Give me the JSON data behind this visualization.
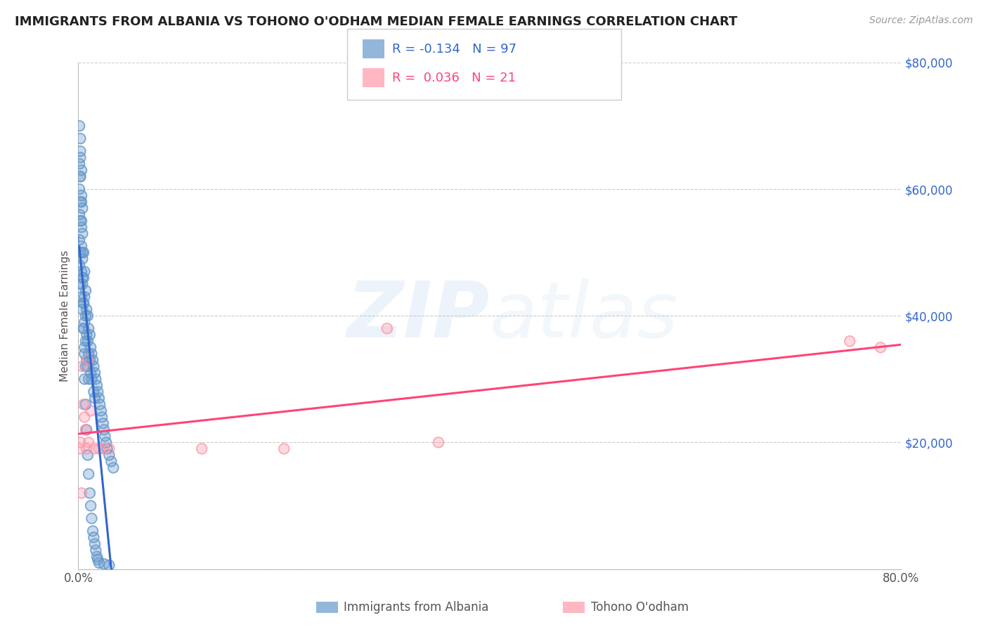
{
  "title": "IMMIGRANTS FROM ALBANIA VS TOHONO O'ODHAM MEDIAN FEMALE EARNINGS CORRELATION CHART",
  "source": "Source: ZipAtlas.com",
  "ylabel": "Median Female Earnings",
  "watermark_zip": "ZIP",
  "watermark_atlas": "atlas",
  "legend_labels": [
    "Immigrants from Albania",
    "Tohono O'odham"
  ],
  "blue_R": -0.134,
  "blue_N": 97,
  "pink_R": 0.036,
  "pink_N": 21,
  "blue_color": "#6699CC",
  "pink_color": "#FF99AA",
  "blue_line_color": "#3366CC",
  "pink_line_color": "#FF4477",
  "xlim": [
    0,
    0.8
  ],
  "ylim": [
    0,
    80000
  ],
  "blue_x": [
    0.001,
    0.001,
    0.001,
    0.001,
    0.001,
    0.002,
    0.002,
    0.002,
    0.002,
    0.002,
    0.002,
    0.002,
    0.003,
    0.003,
    0.003,
    0.003,
    0.003,
    0.003,
    0.004,
    0.004,
    0.004,
    0.004,
    0.004,
    0.005,
    0.005,
    0.005,
    0.005,
    0.006,
    0.006,
    0.006,
    0.006,
    0.007,
    0.007,
    0.007,
    0.007,
    0.008,
    0.008,
    0.008,
    0.009,
    0.009,
    0.009,
    0.01,
    0.01,
    0.01,
    0.011,
    0.011,
    0.012,
    0.012,
    0.013,
    0.013,
    0.014,
    0.015,
    0.015,
    0.016,
    0.016,
    0.017,
    0.018,
    0.019,
    0.02,
    0.021,
    0.022,
    0.023,
    0.024,
    0.025,
    0.026,
    0.027,
    0.028,
    0.03,
    0.032,
    0.034,
    0.001,
    0.002,
    0.002,
    0.003,
    0.003,
    0.004,
    0.004,
    0.005,
    0.005,
    0.006,
    0.006,
    0.007,
    0.008,
    0.009,
    0.01,
    0.011,
    0.012,
    0.013,
    0.014,
    0.015,
    0.016,
    0.017,
    0.018,
    0.019,
    0.02,
    0.025,
    0.03
  ],
  "blue_y": [
    64000,
    60000,
    56000,
    52000,
    48000,
    68000,
    65000,
    62000,
    58000,
    55000,
    50000,
    45000,
    63000,
    59000,
    55000,
    51000,
    47000,
    43000,
    57000,
    53000,
    49000,
    45000,
    41000,
    50000,
    46000,
    42000,
    38000,
    47000,
    43000,
    39000,
    35000,
    44000,
    40000,
    36000,
    32000,
    41000,
    37000,
    33000,
    40000,
    36000,
    32000,
    38000,
    34000,
    30000,
    37000,
    33000,
    35000,
    31000,
    34000,
    30000,
    33000,
    32000,
    28000,
    31000,
    27000,
    30000,
    29000,
    28000,
    27000,
    26000,
    25000,
    24000,
    23000,
    22000,
    21000,
    20000,
    19000,
    18000,
    17000,
    16000,
    70000,
    66000,
    62000,
    58000,
    54000,
    50000,
    46000,
    42000,
    38000,
    34000,
    30000,
    26000,
    22000,
    18000,
    15000,
    12000,
    10000,
    8000,
    6000,
    5000,
    4000,
    3000,
    2000,
    1500,
    1000,
    800,
    600
  ],
  "pink_x": [
    0.001,
    0.002,
    0.003,
    0.004,
    0.005,
    0.006,
    0.007,
    0.008,
    0.009,
    0.01,
    0.012,
    0.015,
    0.02,
    0.025,
    0.03,
    0.12,
    0.2,
    0.3,
    0.35,
    0.75,
    0.78
  ],
  "pink_y": [
    19000,
    20000,
    12000,
    32000,
    26000,
    24000,
    22000,
    19000,
    33000,
    20000,
    25000,
    19000,
    19000,
    19000,
    19000,
    19000,
    19000,
    38000,
    20000,
    36000,
    35000
  ],
  "background_color": "#FFFFFF",
  "grid_color": "#CCCCCC",
  "title_color": "#222222",
  "axis_color": "#555555"
}
